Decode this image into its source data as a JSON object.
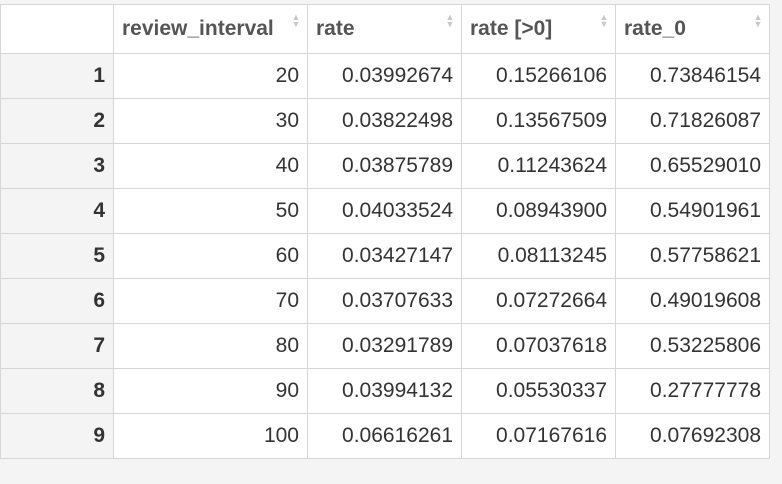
{
  "table": {
    "columns": [
      {
        "label": "review_interval",
        "sort_icon": "sort-arrows-icon"
      },
      {
        "label": "rate",
        "sort_icon": "sort-arrows-icon"
      },
      {
        "label": "rate [>0]",
        "sort_icon": "sort-arrows-icon"
      },
      {
        "label": "rate_0",
        "sort_icon": "sort-arrows-icon"
      }
    ],
    "rows": [
      {
        "row": "1",
        "cells": [
          "20",
          "0.03992674",
          "0.15266106",
          "0.73846154"
        ]
      },
      {
        "row": "2",
        "cells": [
          "30",
          "0.03822498",
          "0.13567509",
          "0.71826087"
        ]
      },
      {
        "row": "3",
        "cells": [
          "40",
          "0.03875789",
          "0.11243624",
          "0.65529010"
        ]
      },
      {
        "row": "4",
        "cells": [
          "50",
          "0.04033524",
          "0.08943900",
          "0.54901961"
        ]
      },
      {
        "row": "5",
        "cells": [
          "60",
          "0.03427147",
          "0.08113245",
          "0.57758621"
        ]
      },
      {
        "row": "6",
        "cells": [
          "70",
          "0.03707633",
          "0.07272664",
          "0.49019608"
        ]
      },
      {
        "row": "7",
        "cells": [
          "80",
          "0.03291789",
          "0.07037618",
          "0.53225806"
        ]
      },
      {
        "row": "8",
        "cells": [
          "90",
          "0.03994132",
          "0.05530337",
          "0.27777778"
        ]
      },
      {
        "row": "9",
        "cells": [
          "100",
          "0.06616261",
          "0.07167616",
          "0.07692308"
        ]
      }
    ]
  },
  "colors": {
    "background": "#f4f4f4",
    "cell_background": "#ffffff",
    "border": "#d6d6d6",
    "text": "#333333",
    "header_text": "#555555",
    "sort_icon": "#c8c8c8"
  }
}
